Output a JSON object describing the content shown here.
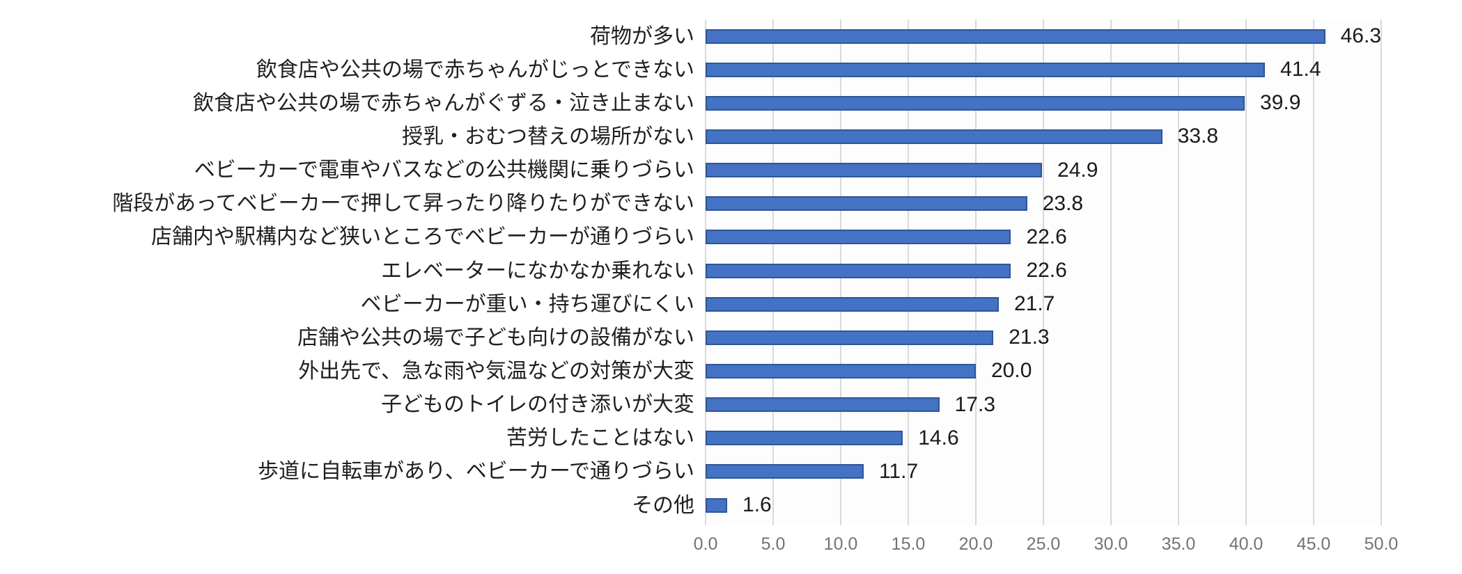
{
  "chart_data": {
    "type": "bar",
    "orientation": "horizontal",
    "title": "",
    "xlabel": "",
    "ylabel": "",
    "xlim": [
      0,
      50
    ],
    "grid": true,
    "legend": false,
    "categories": [
      "荷物が多い",
      "飲食店や公共の場で赤ちゃんがじっとできない",
      "飲食店や公共の場で赤ちゃんがぐずる・泣き止まない",
      "授乳・おむつ替えの場所がない",
      "ベビーカーで電車やバスなどの公共機関に乗りづらい",
      "階段があってベビーカーで押して昇ったり降りたりができない",
      "店舗内や駅構内など狭いところでベビーカーが通りづらい",
      "エレベーターになかなか乗れない",
      "ベビーカーが重い・持ち運びにくい",
      "店舗や公共の場で子ども向けの設備がない",
      "外出先で、急な雨や気温などの対策が大変",
      "子どものトイレの付き添いが大変",
      "苦労したことはない",
      "歩道に自転車があり、ベビーカーで通りづらい",
      "その他"
    ],
    "values": [
      46.3,
      41.4,
      39.9,
      33.8,
      24.9,
      23.8,
      22.6,
      22.6,
      21.7,
      21.3,
      20.0,
      17.3,
      14.6,
      11.7,
      1.6
    ],
    "value_labels": [
      "46.3",
      "41.4",
      "39.9",
      "33.8",
      "24.9",
      "23.8",
      "22.6",
      "22.6",
      "21.7",
      "21.3",
      "20.0",
      "17.3",
      "14.6",
      "11.7",
      "1.6"
    ],
    "x_ticks": [
      "0.0",
      "5.0",
      "10.0",
      "15.0",
      "20.0",
      "25.0",
      "30.0",
      "35.0",
      "40.0",
      "45.0",
      "50.0"
    ],
    "colors": {
      "bar_fill": "#4472C4",
      "bar_border": "#2F5597",
      "gridline": "#D9D9D9",
      "tick_text": "#737373",
      "label_text": "#1F1F1F",
      "background": "#FFFFFF"
    }
  }
}
